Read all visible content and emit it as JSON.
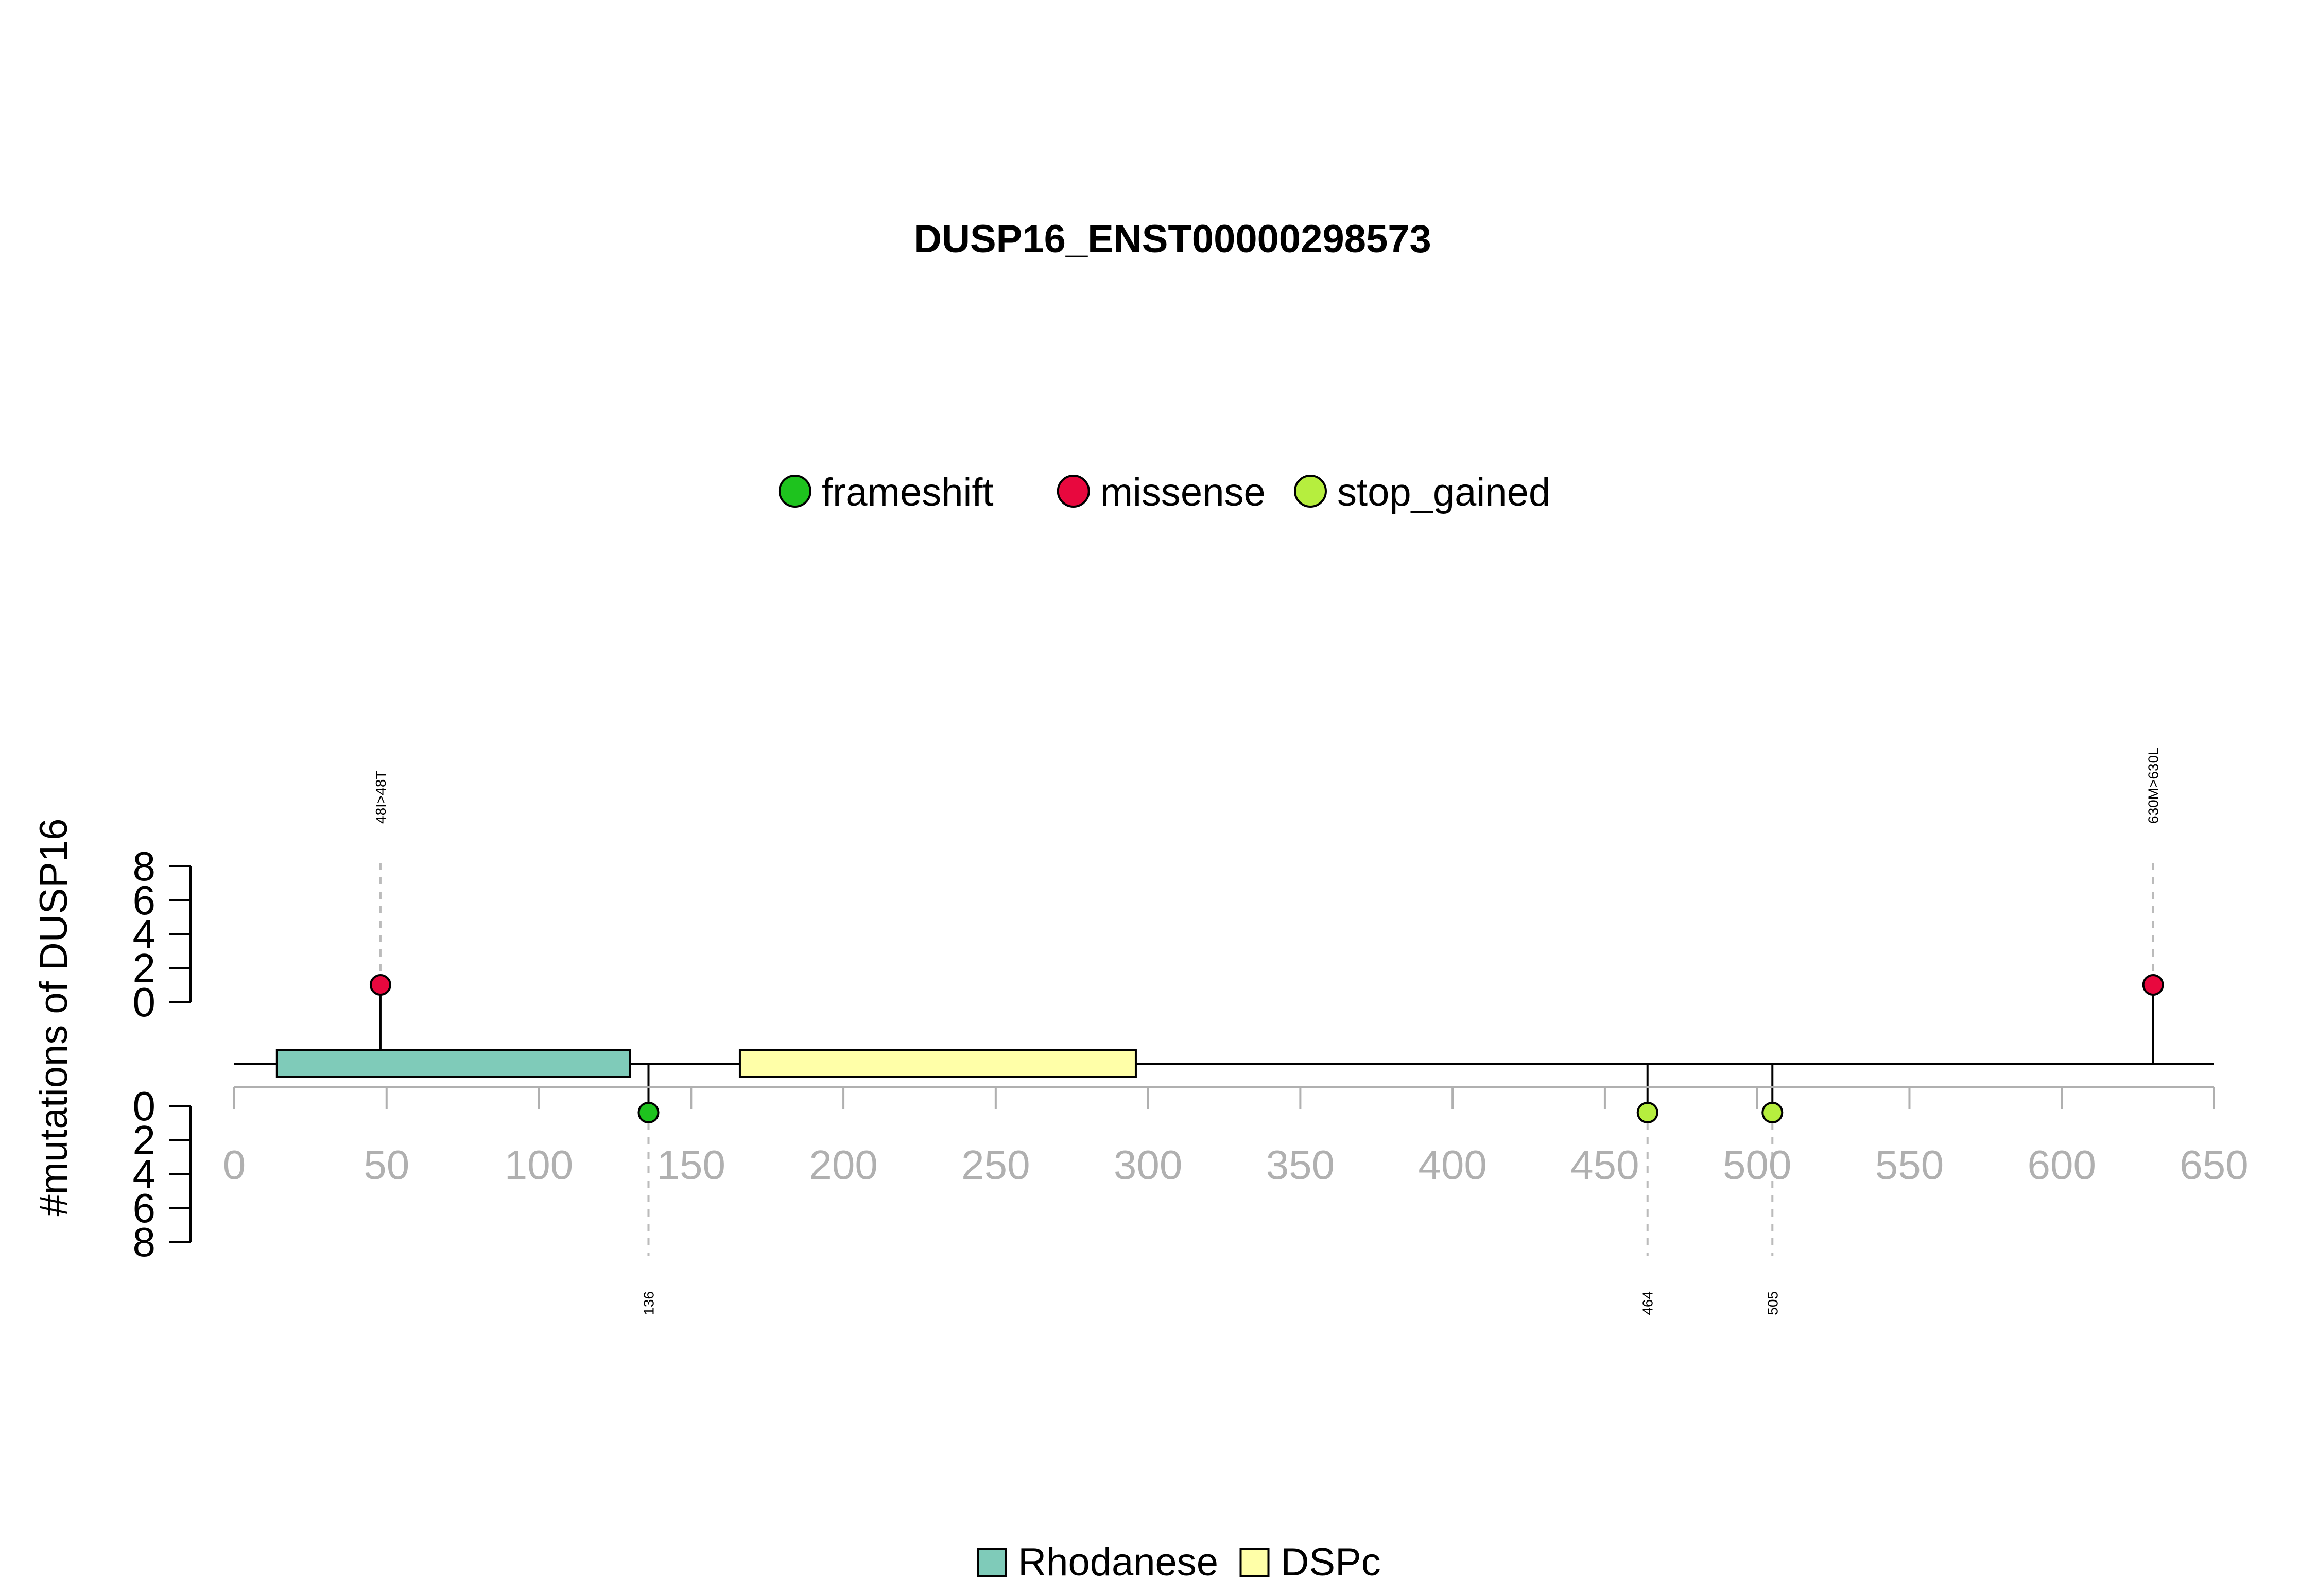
{
  "chart_data": {
    "type": "lollipop",
    "title": "DUSP16_ENST00000298573",
    "ylabel": "#mutations of DUSP16",
    "x_ticks": [
      0,
      50,
      100,
      150,
      200,
      250,
      300,
      350,
      400,
      450,
      500,
      550,
      600,
      650
    ],
    "xlim": [
      0,
      650
    ],
    "y_ticks": [
      0,
      2,
      4,
      6,
      8
    ],
    "ylim": [
      0,
      8
    ],
    "mutation_legend": [
      {
        "name": "frameshift",
        "color": "#1ec31e"
      },
      {
        "name": "missense",
        "color": "#e8083e"
      },
      {
        "name": "stop_gained",
        "color": "#b6ee3e"
      }
    ],
    "domain_legend": [
      {
        "name": "Rhodanese",
        "color": "#7fcbb9"
      },
      {
        "name": "DSPc",
        "color": "#ffffa8"
      }
    ],
    "domains": [
      {
        "name": "Rhodanese",
        "start": 14,
        "end": 130,
        "color": "#7fcbb9"
      },
      {
        "name": "DSPc",
        "start": 166,
        "end": 296,
        "color": "#ffffa8"
      }
    ],
    "mutations": [
      {
        "position": 48,
        "count": 1,
        "type": "missense",
        "side": "top",
        "label": "48I>48T"
      },
      {
        "position": 630,
        "count": 1,
        "type": "missense",
        "side": "top",
        "label": "630M>630L"
      },
      {
        "position": 136,
        "count": 1,
        "type": "frameshift",
        "side": "bottom",
        "label": "136"
      },
      {
        "position": 464,
        "count": 1,
        "type": "stop_gained",
        "side": "bottom",
        "label": "464"
      },
      {
        "position": 505,
        "count": 1,
        "type": "stop_gained",
        "side": "bottom",
        "label": "505"
      }
    ]
  }
}
